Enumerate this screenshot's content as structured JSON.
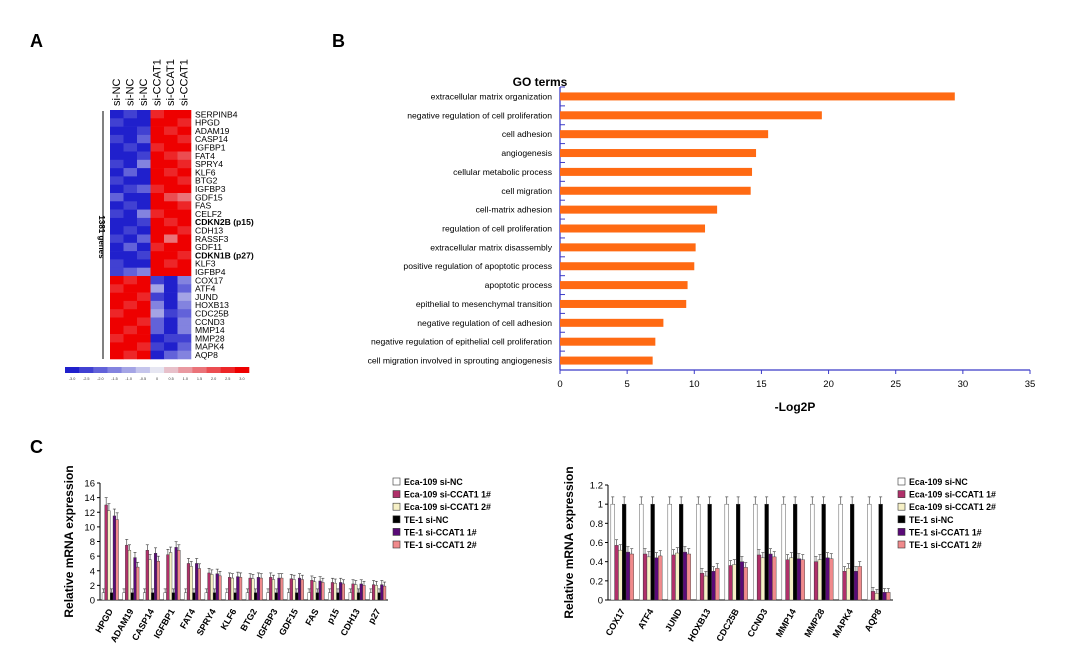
{
  "panels": {
    "A": "A",
    "B": "B",
    "C": "C"
  },
  "colors": {
    "go_bar": "#ff6a13",
    "go_axis": "#3b3bc8",
    "heat_low": "#2020cc",
    "heat_mid": "#e6e6f2",
    "heat_high": "#ee0000",
    "series": [
      "#ffffff",
      "#b0306a",
      "#f6f0c6",
      "#000000",
      "#5a0a78",
      "#f08a8c"
    ],
    "series_stroke": "#333333"
  },
  "chart_data": [
    {
      "type": "heatmap",
      "columns": [
        "si-NC",
        "si-NC",
        "si-NC",
        "si-CCAT1",
        "si-CCAT1",
        "si-CCAT1"
      ],
      "side_label": "1381 genes",
      "rows": [
        "SERPINB4",
        "HPGD",
        "ADAM19",
        "CASP14",
        "IGFBP1",
        "FAT4",
        "SPRY4",
        "KLF6",
        "BTG2",
        "IGFBP3",
        "GDF15",
        "FAS",
        "CELF2",
        "CDKN2B (p15)",
        "CDH13",
        "RASSF3",
        "GDF11",
        "CDKN1B (p27)",
        "KLF3",
        "IGFBP4",
        "COX17",
        "ATF4",
        "JUND",
        "HOXB13",
        "CDC25B",
        "CCND3",
        "MMP14",
        "MMP28",
        "MAPK4",
        "AQP8"
      ],
      "values": [
        [
          -3,
          -2.5,
          -3,
          2.5,
          3,
          3
        ],
        [
          -2.5,
          -3,
          -3,
          3,
          3,
          2.5
        ],
        [
          -3,
          -3,
          -2.5,
          3,
          2.5,
          3
        ],
        [
          -2.5,
          -3,
          -2,
          3,
          3,
          2.5
        ],
        [
          -3,
          -2.5,
          -3,
          2.5,
          3,
          3
        ],
        [
          -3,
          -3,
          -2.5,
          3,
          2.5,
          2
        ],
        [
          -2.5,
          -3,
          -1.5,
          3,
          3,
          2.5
        ],
        [
          -3,
          -2,
          -3,
          3,
          2.5,
          3
        ],
        [
          -2.5,
          -3,
          -3,
          3,
          3,
          2.5
        ],
        [
          -3,
          -2.5,
          -2,
          2.5,
          3,
          3
        ],
        [
          -2,
          -3,
          -3,
          3,
          2,
          1.5
        ],
        [
          -3,
          -2.5,
          -3,
          3,
          3,
          2.5
        ],
        [
          -2.5,
          -3,
          -1.5,
          2.5,
          3,
          3
        ],
        [
          -3,
          -3,
          -2.5,
          3,
          2.5,
          3
        ],
        [
          -3,
          -2.5,
          -3,
          3,
          3,
          2.5
        ],
        [
          -2.5,
          -3,
          -2,
          3,
          1.5,
          3
        ],
        [
          -3,
          -2,
          -3,
          2.5,
          3,
          3
        ],
        [
          -3,
          -3,
          -2.5,
          3,
          3,
          2.5
        ],
        [
          -2.5,
          -3,
          -3,
          3,
          2.5,
          3
        ],
        [
          -2.5,
          -2,
          -1.5,
          3,
          3,
          3
        ],
        [
          3,
          2.5,
          3,
          -2.5,
          -3,
          -1.5
        ],
        [
          2.5,
          3,
          3,
          -1,
          -3,
          -2
        ],
        [
          3,
          3,
          2.5,
          -2.5,
          -3,
          -1
        ],
        [
          3,
          2.5,
          3,
          -1.5,
          -3,
          -1.5
        ],
        [
          2.5,
          3,
          3,
          -1,
          -2.5,
          -2
        ],
        [
          3,
          3,
          2.5,
          -2,
          -3,
          -1.5
        ],
        [
          3,
          2.5,
          3,
          -2,
          -3,
          -1.5
        ],
        [
          2.5,
          3,
          3,
          -3,
          -2.5,
          -2.5
        ],
        [
          3,
          3,
          2.5,
          -2.5,
          -3,
          -2
        ],
        [
          3,
          2.5,
          3,
          -3,
          -2,
          -1.5
        ]
      ],
      "color_scale": [
        "-3.0",
        "-2.5",
        "-2.0",
        "-1.5",
        "-1.0",
        "-0.5",
        "0",
        "0.5",
        "1.0",
        "1.5",
        "2.0",
        "2.5",
        "3.0"
      ]
    },
    {
      "type": "bar",
      "orientation": "horizontal",
      "title": "GO terms",
      "xlabel": "-Log2P",
      "xlim": [
        0,
        35
      ],
      "xticks": [
        0,
        5,
        10,
        15,
        20,
        25,
        30,
        35
      ],
      "categories": [
        "extracellular matrix organization",
        "negative regulation of cell proliferation",
        "cell adhesion",
        "angiogenesis",
        "cellular metabolic process",
        "cell migration",
        "cell-matrix adhesion",
        "regulation of cell proliferation",
        "extracellular matrix disassembly",
        "positive regulation of apoptotic process",
        "apoptotic process",
        "epithelial to mesenchymal transition",
        "negative regulation of cell adhesion",
        "negative regulation of epithelial cell proliferation",
        "cell migration involved in sprouting angiogenesis"
      ],
      "values": [
        29.4,
        19.5,
        15.5,
        14.6,
        14.3,
        14.2,
        11.7,
        10.8,
        10.1,
        10.0,
        9.5,
        9.4,
        7.7,
        7.1,
        6.9
      ]
    },
    {
      "type": "bar",
      "ylabel": "Relative mRNA expression",
      "ylim": [
        0,
        16
      ],
      "yticks": [
        "0",
        "2",
        "4",
        "6",
        "8",
        "10",
        "12",
        "14",
        "16"
      ],
      "categories": [
        "HPGD",
        "ADAM19",
        "CASP14",
        "IGFBP1",
        "FAT4",
        "SPRY4",
        "KLF6",
        "BTG2",
        "IGFBP3",
        "GDF15",
        "FAS",
        "p15",
        "CDH13",
        "p27"
      ],
      "series": [
        {
          "name": "Eca-109 si-NC",
          "values": [
            1,
            1,
            1,
            1,
            1,
            1,
            1,
            1,
            1,
            1,
            1,
            1,
            1,
            1
          ]
        },
        {
          "name": "Eca-109 si-CCAT1 1#",
          "values": [
            13.0,
            7.5,
            6.8,
            6.2,
            5.0,
            3.7,
            3.1,
            3.0,
            3.1,
            2.9,
            2.7,
            2.4,
            2.2,
            2.1
          ]
        },
        {
          "name": "Eca-109 si-CCAT1 2#",
          "values": [
            12.2,
            6.8,
            5.5,
            6.5,
            4.6,
            3.5,
            3.0,
            2.9,
            2.8,
            2.8,
            2.5,
            2.3,
            2.1,
            2.0
          ]
        },
        {
          "name": "TE-1 si-NC",
          "values": [
            1,
            1,
            1,
            1,
            1,
            1,
            1,
            1,
            1,
            1,
            1,
            1,
            1,
            1
          ]
        },
        {
          "name": "TE-1 si-CCAT1 1#",
          "values": [
            11.5,
            5.8,
            6.4,
            7.2,
            5.0,
            3.6,
            3.2,
            3.1,
            3.0,
            3.0,
            2.6,
            2.4,
            2.2,
            2.1
          ]
        },
        {
          "name": "TE-1 si-CCAT1 2#",
          "values": [
            11.0,
            4.5,
            5.3,
            6.8,
            4.3,
            3.3,
            3.1,
            3.0,
            3.0,
            2.8,
            2.4,
            2.2,
            2.0,
            1.9
          ]
        }
      ]
    },
    {
      "type": "bar",
      "ylabel": "Relative mRNA expression",
      "ylim": [
        0,
        1.2
      ],
      "yticks": [
        "0",
        "0.2",
        "0.4",
        "0.6",
        "0.8",
        "1",
        "1.2"
      ],
      "categories": [
        "COX17",
        "ATF4",
        "JUND",
        "HOXB13",
        "CDC25B",
        "CCND3",
        "MMP14",
        "MMP28",
        "MAPK4",
        "AQP8"
      ],
      "series": [
        {
          "name": "Eca-109 si-NC",
          "values": [
            1,
            1,
            1,
            1,
            1,
            1,
            1,
            1,
            1,
            1
          ]
        },
        {
          "name": "Eca-109 si-CCAT1 1#",
          "values": [
            0.57,
            0.48,
            0.47,
            0.28,
            0.36,
            0.47,
            0.42,
            0.4,
            0.3,
            0.09
          ]
        },
        {
          "name": "Eca-109 si-CCAT1 2#",
          "values": [
            0.52,
            0.45,
            0.49,
            0.25,
            0.37,
            0.44,
            0.44,
            0.42,
            0.33,
            0.07
          ]
        },
        {
          "name": "TE-1 si-NC",
          "values": [
            1,
            1,
            1,
            1,
            1,
            1,
            1,
            1,
            1,
            1
          ]
        },
        {
          "name": "TE-1 si-CCAT1 1#",
          "values": [
            0.5,
            0.44,
            0.5,
            0.3,
            0.4,
            0.48,
            0.43,
            0.44,
            0.3,
            0.08
          ]
        },
        {
          "name": "TE-1 si-CCAT1 2#",
          "values": [
            0.48,
            0.46,
            0.48,
            0.33,
            0.34,
            0.45,
            0.42,
            0.43,
            0.35,
            0.08
          ]
        }
      ]
    }
  ]
}
